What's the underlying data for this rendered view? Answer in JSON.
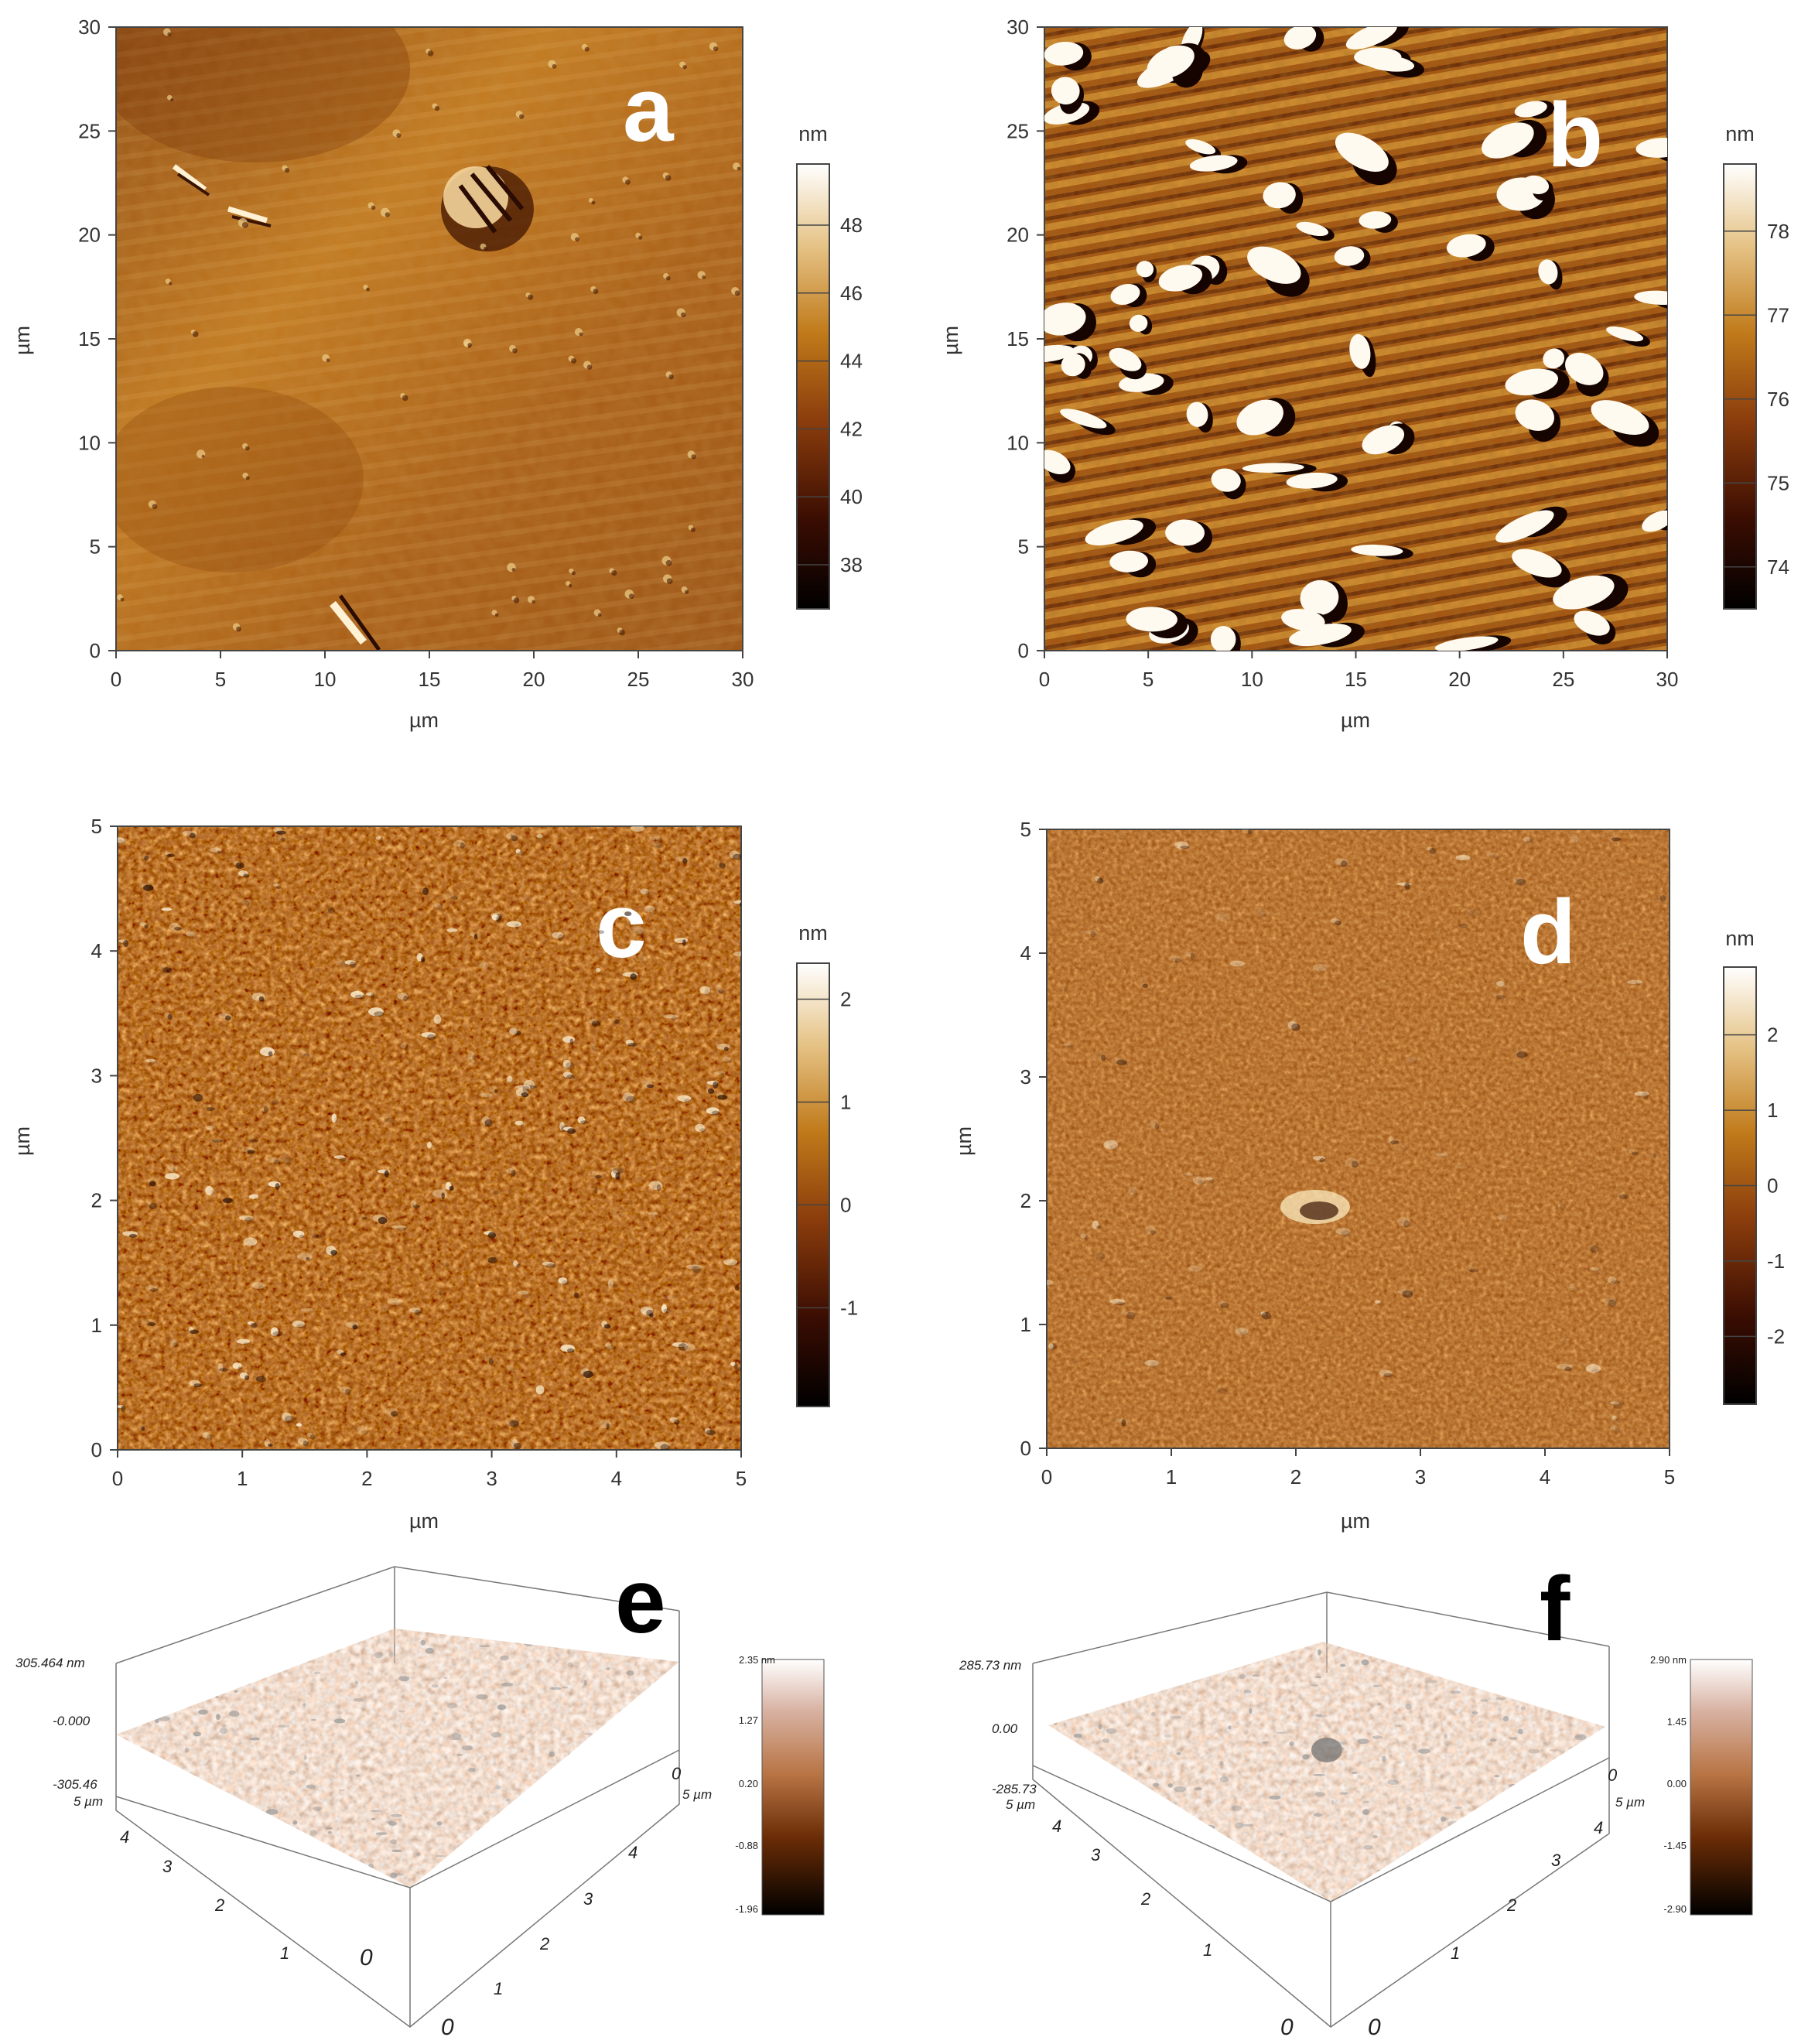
{
  "panels": [
    {
      "letter": "a",
      "x_unit": "µm",
      "y_unit": "µm",
      "scale_unit": "nm",
      "x_ticks": [
        "0",
        "5",
        "10",
        "15",
        "20",
        "25",
        "30"
      ],
      "y_ticks": [
        "0",
        "5",
        "10",
        "15",
        "20",
        "25",
        "30"
      ],
      "scale_ticks": [
        "38",
        "40",
        "42",
        "44",
        "46",
        "48"
      ],
      "scale_range": [
        36.7,
        49.8
      ]
    },
    {
      "letter": "b",
      "x_unit": "µm",
      "y_unit": "µm",
      "scale_unit": "nm",
      "x_ticks": [
        "0",
        "5",
        "10",
        "15",
        "20",
        "25",
        "30"
      ],
      "y_ticks": [
        "0",
        "5",
        "10",
        "15",
        "20",
        "25",
        "30"
      ],
      "scale_ticks": [
        "74",
        "75",
        "76",
        "77",
        "78"
      ],
      "scale_range": [
        73.5,
        78.8
      ]
    },
    {
      "letter": "c",
      "x_unit": "µm",
      "y_unit": "µm",
      "scale_unit": "nm",
      "x_ticks": [
        "0",
        "1",
        "2",
        "3",
        "4",
        "5"
      ],
      "y_ticks": [
        "0",
        "1",
        "2",
        "3",
        "4",
        "5"
      ],
      "scale_ticks": [
        "-1",
        "0",
        "1",
        "2"
      ],
      "scale_range": [
        -1.96,
        2.35
      ]
    },
    {
      "letter": "d",
      "x_unit": "µm",
      "y_unit": "µm",
      "scale_unit": "nm",
      "x_ticks": [
        "0",
        "1",
        "2",
        "3",
        "4",
        "5"
      ],
      "y_ticks": [
        "0",
        "1",
        "2",
        "3",
        "4",
        "5"
      ],
      "scale_ticks": [
        "-2",
        "-1",
        "0",
        "1",
        "2"
      ],
      "scale_range": [
        -2.9,
        2.9
      ]
    },
    {
      "letter": "e",
      "z_top": "305.464 nm",
      "z_mid": "-0.000",
      "z_bot": "-305.46",
      "axis_end_a": "5 µm",
      "axis_end_b": "5 µm",
      "axis_ticks_left": [
        "4",
        "3",
        "2",
        "1",
        "0"
      ],
      "axis_ticks_right": [
        "0",
        "1",
        "2",
        "3",
        "4"
      ],
      "scale_labels": [
        "2.35 nm",
        "1.27",
        "0.20",
        "-0.88",
        "-1.96"
      ]
    },
    {
      "letter": "f",
      "z_top": "285.73 nm",
      "z_mid": "0.00",
      "z_bot": "-285.73",
      "axis_end_a": "5 µm",
      "axis_end_b": "5 µm",
      "axis_ticks_left": [
        "4",
        "3",
        "2",
        "1",
        "0"
      ],
      "axis_ticks_right": [
        "0",
        "1",
        "2",
        "3",
        "4"
      ],
      "scale_labels": [
        "2.90 nm",
        "1.45",
        "0.00",
        "-1.45",
        "-2.90"
      ]
    }
  ],
  "colors": {
    "afm_dark": "#1a0600",
    "afm_mid": "#b0651c",
    "afm_light": "#fff8ea",
    "surface_3d": "#b87444"
  }
}
